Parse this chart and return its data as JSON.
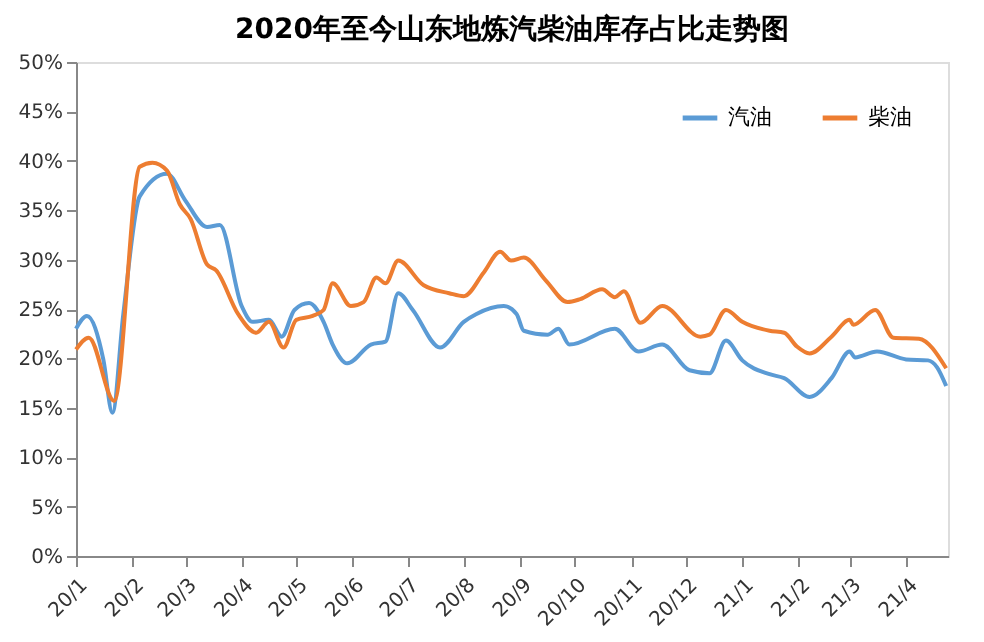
{
  "chart_data": {
    "type": "line",
    "title": "2020年至今山东地炼汽柴油库存占比走势图",
    "xlim": [
      "2020-01-01",
      "2021-04-24"
    ],
    "xticks": [
      {
        "value": "2020-01-01",
        "label": "20/1"
      },
      {
        "value": "2020-02-01",
        "label": "20/2"
      },
      {
        "value": "2020-03-01",
        "label": "20/3"
      },
      {
        "value": "2020-04-01",
        "label": "20/4"
      },
      {
        "value": "2020-05-01",
        "label": "20/5"
      },
      {
        "value": "2020-06-01",
        "label": "20/6"
      },
      {
        "value": "2020-07-01",
        "label": "20/7"
      },
      {
        "value": "2020-08-01",
        "label": "20/8"
      },
      {
        "value": "2020-09-01",
        "label": "20/9"
      },
      {
        "value": "2020-10-01",
        "label": "20/10"
      },
      {
        "value": "2020-11-01",
        "label": "20/11"
      },
      {
        "value": "2020-12-01",
        "label": "20/12"
      },
      {
        "value": "2021-01-01",
        "label": "21/1"
      },
      {
        "value": "2021-02-01",
        "label": "21/2"
      },
      {
        "value": "2021-03-01",
        "label": "21/3"
      },
      {
        "value": "2021-04-01",
        "label": "21/4"
      }
    ],
    "ylim": [
      0,
      50
    ],
    "yticks": [
      {
        "value": 0,
        "label": "0%"
      },
      {
        "value": 5,
        "label": "5%"
      },
      {
        "value": 10,
        "label": "10%"
      },
      {
        "value": 15,
        "label": "15%"
      },
      {
        "value": 20,
        "label": "20%"
      },
      {
        "value": 25,
        "label": "25%"
      },
      {
        "value": 30,
        "label": "30%"
      },
      {
        "value": 35,
        "label": "35%"
      },
      {
        "value": 40,
        "label": "40%"
      },
      {
        "value": 45,
        "label": "45%"
      },
      {
        "value": 50,
        "label": "50%"
      }
    ],
    "grid": false,
    "legend": "top right",
    "marker": "none",
    "line_style": "solid",
    "series": [
      {
        "name": "汽油",
        "color": "#5b9bd5",
        "x": [
          "2020-01-01",
          "2020-01-07",
          "2020-01-16",
          "2020-01-21",
          "2020-01-27",
          "2020-02-05",
          "2020-02-20",
          "2020-03-01",
          "2020-03-13",
          "2020-03-20",
          "2020-04-01",
          "2020-04-07",
          "2020-04-16",
          "2020-04-23",
          "2020-04-30",
          "2020-05-08",
          "2020-05-16",
          "2020-05-21",
          "2020-05-29",
          "2020-06-11",
          "2020-06-19",
          "2020-06-26",
          "2020-07-04",
          "2020-07-19",
          "2020-08-01",
          "2020-08-08",
          "2020-08-23",
          "2020-08-30",
          "2020-09-03",
          "2020-09-16",
          "2020-09-22",
          "2020-09-28",
          "2020-10-23",
          "2020-11-05",
          "2020-11-18",
          "2020-12-03",
          "2020-12-14",
          "2020-12-23",
          "2021-01-01",
          "2021-01-16",
          "2021-01-24",
          "2021-02-07",
          "2021-02-19",
          "2021-03-01",
          "2021-03-04",
          "2021-03-16",
          "2021-04-01",
          "2021-04-13",
          "2021-04-18",
          "2021-04-23"
        ],
        "values": [
          23.0,
          24.3,
          19.9,
          14.5,
          24.5,
          36.4,
          38.7,
          36.0,
          33.3,
          33.5,
          25.3,
          23.7,
          23.9,
          22.2,
          24.9,
          25.6,
          23.7,
          21.4,
          19.5,
          21.4,
          21.7,
          26.6,
          24.9,
          21.1,
          23.7,
          24.5,
          25.3,
          24.5,
          22.8,
          22.4,
          23.0,
          21.4,
          23.0,
          20.7,
          21.4,
          18.8,
          18.5,
          21.8,
          19.8,
          18.4,
          18.0,
          16.1,
          18.0,
          20.7,
          20.1,
          20.7,
          19.9,
          19.8,
          19.1,
          17.2
        ]
      },
      {
        "name": "柴油",
        "color": "#ed7d31",
        "x": [
          "2020-01-01",
          "2020-01-08",
          "2020-01-22",
          "2020-02-05",
          "2020-02-12",
          "2020-02-20",
          "2020-02-27",
          "2020-03-04",
          "2020-03-13",
          "2020-03-18",
          "2020-03-30",
          "2020-04-09",
          "2020-04-16",
          "2020-04-24",
          "2020-05-01",
          "2020-05-10",
          "2020-05-16",
          "2020-05-21",
          "2020-05-31",
          "2020-06-07",
          "2020-06-14",
          "2020-06-19",
          "2020-06-26",
          "2020-07-10",
          "2020-07-24",
          "2020-08-01",
          "2020-08-12",
          "2020-08-21",
          "2020-08-27",
          "2020-09-03",
          "2020-09-15",
          "2020-09-27",
          "2020-10-04",
          "2020-10-16",
          "2020-10-23",
          "2020-10-28",
          "2020-11-06",
          "2020-11-18",
          "2020-12-09",
          "2020-12-14",
          "2020-12-23",
          "2021-01-01",
          "2021-01-16",
          "2021-01-24",
          "2021-01-31",
          "2021-02-07",
          "2021-02-19",
          "2021-03-01",
          "2021-03-03",
          "2021-03-15",
          "2021-03-25",
          "2021-04-08",
          "2021-04-23"
        ],
        "values": [
          20.9,
          22.1,
          15.7,
          39.4,
          39.8,
          39.0,
          35.6,
          34.1,
          29.5,
          28.9,
          24.5,
          22.6,
          23.7,
          21.1,
          23.9,
          24.3,
          24.9,
          27.6,
          25.3,
          25.7,
          28.2,
          27.6,
          29.9,
          27.4,
          26.6,
          26.3,
          28.7,
          30.8,
          29.9,
          30.2,
          27.9,
          25.7,
          26.0,
          27.0,
          26.2,
          26.8,
          23.6,
          25.3,
          22.2,
          22.4,
          24.9,
          23.7,
          22.8,
          22.6,
          21.2,
          20.5,
          22.2,
          23.9,
          23.4,
          24.9,
          22.1,
          22.0,
          19.0
        ]
      }
    ]
  }
}
